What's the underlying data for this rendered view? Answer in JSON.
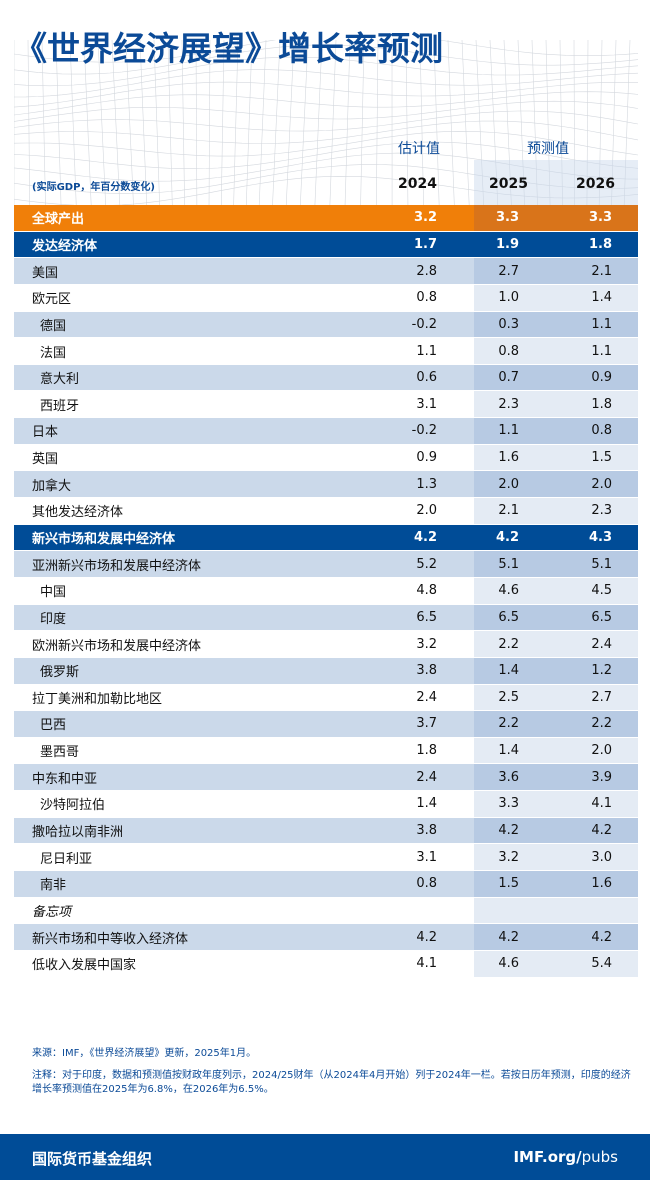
{
  "title": "《世界经济展望》增长率预测",
  "header": {
    "estimate_label": "估计值",
    "forecast_label": "预测值",
    "unit_label": "(实际GDP，年百分数变化)",
    "years": [
      "2024",
      "2025",
      "2026"
    ]
  },
  "colors": {
    "title": "#0b4a97",
    "world": "#f07f09",
    "group": "#004c97",
    "shade": "#cbd9ea"
  },
  "rows": [
    {
      "type": "world",
      "label": "全球产出",
      "values": [
        "3.2",
        "3.3",
        "3.3"
      ]
    },
    {
      "type": "group",
      "label": "发达经济体",
      "values": [
        "1.7",
        "1.9",
        "1.8"
      ]
    },
    {
      "type": "row",
      "label": "美国",
      "values": [
        "2.8",
        "2.7",
        "2.1"
      ]
    },
    {
      "type": "row",
      "label": "欧元区",
      "values": [
        "0.8",
        "1.0",
        "1.4"
      ]
    },
    {
      "type": "indent",
      "label": "德国",
      "values": [
        "-0.2",
        "0.3",
        "1.1"
      ]
    },
    {
      "type": "indent",
      "label": "法国",
      "values": [
        "1.1",
        "0.8",
        "1.1"
      ]
    },
    {
      "type": "indent",
      "label": "意大利",
      "values": [
        "0.6",
        "0.7",
        "0.9"
      ]
    },
    {
      "type": "indent",
      "label": "西班牙",
      "values": [
        "3.1",
        "2.3",
        "1.8"
      ]
    },
    {
      "type": "row",
      "label": "日本",
      "values": [
        "-0.2",
        "1.1",
        "0.8"
      ]
    },
    {
      "type": "row",
      "label": "英国",
      "values": [
        "0.9",
        "1.6",
        "1.5"
      ]
    },
    {
      "type": "row",
      "label": "加拿大",
      "values": [
        "1.3",
        "2.0",
        "2.0"
      ]
    },
    {
      "type": "row",
      "label": "其他发达经济体",
      "values": [
        "2.0",
        "2.1",
        "2.3"
      ]
    },
    {
      "type": "group",
      "label": "新兴市场和发展中经济体",
      "values": [
        "4.2",
        "4.2",
        "4.3"
      ]
    },
    {
      "type": "row",
      "label": "亚洲新兴市场和发展中经济体",
      "values": [
        "5.2",
        "5.1",
        "5.1"
      ]
    },
    {
      "type": "indent",
      "label": "中国",
      "values": [
        "4.8",
        "4.6",
        "4.5"
      ]
    },
    {
      "type": "indent",
      "label": "印度",
      "values": [
        "6.5",
        "6.5",
        "6.5"
      ]
    },
    {
      "type": "row",
      "label": "欧洲新兴市场和发展中经济体",
      "values": [
        "3.2",
        "2.2",
        "2.4"
      ]
    },
    {
      "type": "indent",
      "label": "俄罗斯",
      "values": [
        "3.8",
        "1.4",
        "1.2"
      ]
    },
    {
      "type": "row",
      "label": "拉丁美洲和加勒比地区",
      "values": [
        "2.4",
        "2.5",
        "2.7"
      ]
    },
    {
      "type": "indent",
      "label": "巴西",
      "values": [
        "3.7",
        "2.2",
        "2.2"
      ]
    },
    {
      "type": "indent",
      "label": "墨西哥",
      "values": [
        "1.8",
        "1.4",
        "2.0"
      ]
    },
    {
      "type": "row",
      "label": "中东和中亚",
      "values": [
        "2.4",
        "3.6",
        "3.9"
      ]
    },
    {
      "type": "indent",
      "label": "沙特阿拉伯",
      "values": [
        "1.4",
        "3.3",
        "4.1"
      ]
    },
    {
      "type": "row",
      "label": "撒哈拉以南非洲",
      "values": [
        "3.8",
        "4.2",
        "4.2"
      ]
    },
    {
      "type": "indent",
      "label": "尼日利亚",
      "values": [
        "3.1",
        "3.2",
        "3.0"
      ]
    },
    {
      "type": "indent",
      "label": "南非",
      "values": [
        "0.8",
        "1.5",
        "1.6"
      ]
    },
    {
      "type": "memo",
      "label": "备忘项",
      "values": [
        "",
        "",
        ""
      ]
    },
    {
      "type": "row",
      "label": "新兴市场和中等收入经济体",
      "values": [
        "4.2",
        "4.2",
        "4.2"
      ]
    },
    {
      "type": "row",
      "label": "低收入发展中国家",
      "values": [
        "4.1",
        "4.6",
        "5.4"
      ]
    }
  ],
  "source": "来源：IMF，《世界经济展望》更新，2025年1月。",
  "note": "注释：对于印度，数据和预测值按财政年度列示，2024/25财年（从2024年4月开始）列于2024年一栏。若按日历年预测，印度的经济增长率预测值在2025年为6.8%，在2026年为6.5%。",
  "footer": {
    "org": "国际货币基金组织",
    "url_bold": "IMF.org/",
    "url_rest": "pubs"
  }
}
